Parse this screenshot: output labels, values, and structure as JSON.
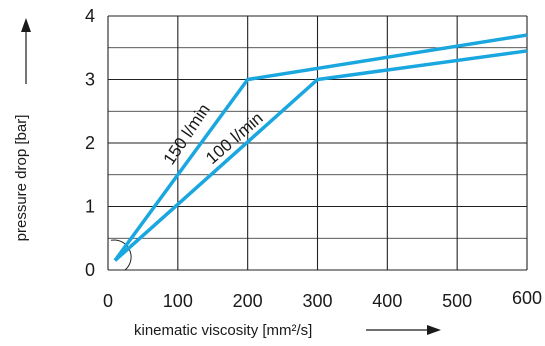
{
  "chart_data": {
    "type": "line",
    "xlabel": "kinematic viscosity [mm²/s]",
    "ylabel": "pressure drop [bar]",
    "xlim": [
      0,
      600
    ],
    "ylim": [
      0,
      4
    ],
    "x_ticks": [
      0,
      100,
      200,
      300,
      400,
      500,
      600
    ],
    "x_tick_labels": [
      "0",
      "100",
      "200",
      "300",
      "400",
      "500",
      "600"
    ],
    "y_ticks": [
      0,
      1,
      2,
      3,
      4
    ],
    "y_tick_labels": [
      "0",
      "1",
      "2",
      "3",
      "4"
    ],
    "grid": true,
    "line_color": "#1aa7e0",
    "series": [
      {
        "name": "150 l/min",
        "points": [
          {
            "x": 10,
            "y": 0.15
          },
          {
            "x": 200,
            "y": 3.0
          },
          {
            "x": 600,
            "y": 3.7
          }
        ]
      },
      {
        "name": "100 l/min",
        "points": [
          {
            "x": 10,
            "y": 0.15
          },
          {
            "x": 300,
            "y": 3.0
          },
          {
            "x": 600,
            "y": 3.45
          }
        ]
      }
    ]
  }
}
